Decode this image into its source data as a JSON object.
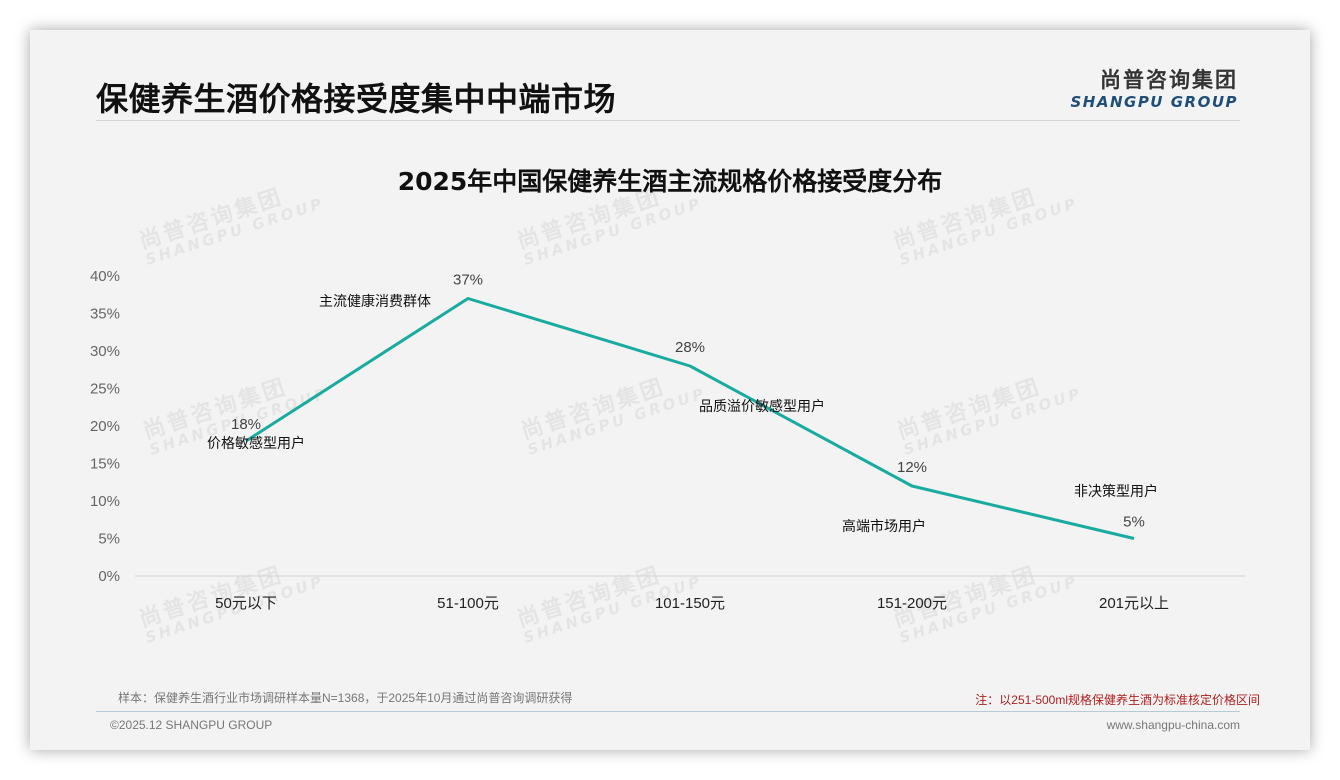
{
  "header": {
    "page_title": "保健养生酒价格接受度集中中端市场",
    "logo_cn": "尚普咨询集团",
    "logo_en": "SHANGPU GROUP"
  },
  "watermark": {
    "cn": "尚普咨询集团",
    "en": "SHANGPU GROUP"
  },
  "chart_data": {
    "type": "line",
    "title": "2025年中国保健养生酒主流规格价格接受度分布",
    "xlabel": "",
    "ylabel": "",
    "categories": [
      "50元以下",
      "51-100元",
      "101-150元",
      "151-200元",
      "201元以上"
    ],
    "series": [
      {
        "name": "价格接受度",
        "values": [
          18,
          37,
          28,
          12,
          5
        ],
        "color": "#1aaba0"
      }
    ],
    "data_labels": [
      "18%",
      "37%",
      "28%",
      "12%",
      "5%"
    ],
    "annotations": [
      "价格敏感型用户",
      "主流健康消费群体",
      "品质溢价敏感型用户",
      "高端市场用户",
      "非决策型用户"
    ],
    "yticks": [
      "0%",
      "5%",
      "10%",
      "15%",
      "20%",
      "25%",
      "30%",
      "35%",
      "40%"
    ],
    "ylim": [
      0,
      40
    ],
    "grid": false,
    "legend": "none"
  },
  "footer": {
    "sample_note": "样本：保健养生酒行业市场调研样本量N=1368，于2025年10月通过尚普咨询调研获得",
    "spec_note": "注：以251-500ml规格保健养生酒为标准核定价格区间",
    "copyright": "©2025.12 SHANGPU GROUP",
    "website": "www.shangpu-china.com"
  }
}
